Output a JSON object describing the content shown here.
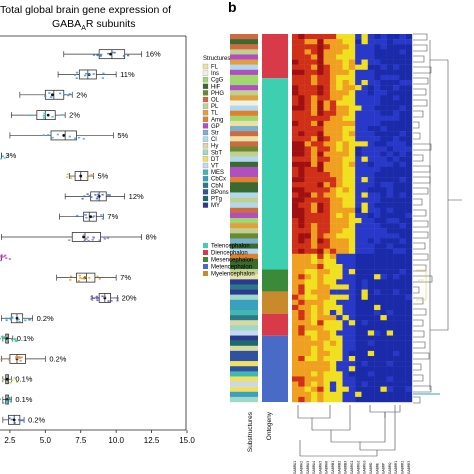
{
  "panel_b_label": "b",
  "chart_data": [
    {
      "type": "box",
      "title": "Total global brain gene expression of GABAₐR subunits",
      "title_line1": "Total global brain gene expression of",
      "title_line2": "GABA",
      "title_sub": "A",
      "title_line2_end": "R subunits",
      "x_ticks": [
        "2.5",
        "5.0",
        "7.5",
        "10.0",
        "12.5",
        "15.0"
      ],
      "xlim": [
        1.8,
        15.0
      ],
      "grid": false,
      "rows": [
        {
          "pct": "16%",
          "q1": 8.8,
          "med": 9.7,
          "q3": 10.6,
          "lo": 6.3,
          "hi": 11.8,
          "mean": 9.6,
          "dot_color": "#3a6fb5"
        },
        {
          "pct": "11%",
          "q1": 7.4,
          "med": 8.0,
          "q3": 8.6,
          "lo": 5.9,
          "hi": 10.0,
          "mean": 8.1,
          "dot_color": "#3a9ad0"
        },
        {
          "pct": "2%",
          "q1": 5.0,
          "med": 5.6,
          "q3": 6.3,
          "lo": 3.2,
          "hi": 6.9,
          "mean": 5.5,
          "dot_color": "#3a8fd0"
        },
        {
          "pct": "2%",
          "q1": 4.4,
          "med": 5.0,
          "q3": 5.7,
          "lo": 2.6,
          "hi": 6.4,
          "mean": 5.2,
          "dot_color": "#3cbcd6"
        },
        {
          "pct": "5%",
          "q1": 5.4,
          "med": 6.4,
          "q3": 7.2,
          "lo": 2.5,
          "hi": 9.8,
          "mean": 6.3,
          "dot_color": "#4aa3df"
        },
        {
          "pct": "3%",
          "q1": 1.9,
          "med": 1.9,
          "q3": 1.9,
          "lo": 1.9,
          "hi": 1.9,
          "mean": 1.9,
          "dot_color": "#5bc7c8"
        },
        {
          "pct": "5%",
          "q1": 7.1,
          "med": 7.5,
          "q3": 8.0,
          "lo": 6.7,
          "hi": 8.4,
          "mean": 7.5,
          "dot_color": "#e0b040"
        },
        {
          "pct": "12%",
          "q1": 8.2,
          "med": 8.8,
          "q3": 9.3,
          "lo": 6.4,
          "hi": 10.6,
          "mean": 8.8,
          "dot_color": "#4060c0"
        },
        {
          "pct": "7%",
          "q1": 7.7,
          "med": 8.1,
          "q3": 8.6,
          "lo": 6.0,
          "hi": 9.1,
          "mean": 8.2,
          "dot_color": "#5a8fd8"
        },
        {
          "pct": "8%",
          "q1": 6.9,
          "med": 7.8,
          "q3": 8.9,
          "lo": 1.9,
          "hi": 11.8,
          "mean": 7.7,
          "dot_color": "#8a7ac0"
        },
        {
          "pct": "",
          "q1": 1.9,
          "med": 1.9,
          "q3": 1.9,
          "lo": 1.9,
          "hi": 1.9,
          "mean": 1.9,
          "dot_color": "#c054b0"
        },
        {
          "pct": "7%",
          "q1": 7.2,
          "med": 7.9,
          "q3": 8.5,
          "lo": 5.8,
          "hi": 10.0,
          "mean": 7.8,
          "dot_color": "#d8a020"
        },
        {
          "pct": "20%",
          "q1": 8.8,
          "med": 9.2,
          "q3": 9.6,
          "lo": 8.3,
          "hi": 10.1,
          "mean": 9.2,
          "dot_color": "#6a50c0"
        },
        {
          "pct": "0.2%",
          "q1": 2.6,
          "med": 3.0,
          "q3": 3.4,
          "lo": 1.9,
          "hi": 4.1,
          "mean": 3.0,
          "dot_color": "#3a9ad0"
        },
        {
          "pct": "0.1%",
          "q1": 2.2,
          "med": 2.3,
          "q3": 2.4,
          "lo": 2.0,
          "hi": 2.7,
          "mean": 2.3,
          "dot_color": "#3ec090"
        },
        {
          "pct": "0.2%",
          "q1": 2.5,
          "med": 3.0,
          "q3": 3.6,
          "lo": 1.9,
          "hi": 5.0,
          "mean": 3.0,
          "dot_color": "#e08040"
        },
        {
          "pct": "0.1%",
          "q1": 2.2,
          "med": 2.3,
          "q3": 2.4,
          "lo": 2.0,
          "hi": 2.6,
          "mean": 2.3,
          "dot_color": "#c8d040"
        },
        {
          "pct": "0.1%",
          "q1": 2.2,
          "med": 2.3,
          "q3": 2.4,
          "lo": 2.0,
          "hi": 2.6,
          "mean": 2.3,
          "dot_color": "#3aa0a0"
        },
        {
          "pct": "0.2%",
          "q1": 2.4,
          "med": 2.8,
          "q3": 3.2,
          "lo": 2.0,
          "hi": 3.5,
          "mean": 2.8,
          "dot_color": "#3a6fb5"
        }
      ]
    },
    {
      "type": "heatmap",
      "legend_title": "Structures",
      "structures": [
        {
          "name": "FL",
          "color": "#e8e2a8"
        },
        {
          "name": "Ins",
          "color": "#f4f0e0"
        },
        {
          "name": "CgG",
          "color": "#a0d870"
        },
        {
          "name": "HiF",
          "color": "#3a6a30"
        },
        {
          "name": "PHG",
          "color": "#6a8a30"
        },
        {
          "name": "OL",
          "color": "#d06a40"
        },
        {
          "name": "PL",
          "color": "#c0d090"
        },
        {
          "name": "TL",
          "color": "#e0a040"
        },
        {
          "name": "Amg",
          "color": "#e08030"
        },
        {
          "name": "GP",
          "color": "#b050c0"
        },
        {
          "name": "Str",
          "color": "#7ab0d0"
        },
        {
          "name": "Cl",
          "color": "#b0d8f0"
        },
        {
          "name": "Hy",
          "color": "#d8d8a0"
        },
        {
          "name": "SbT",
          "color": "#a0d8c8"
        },
        {
          "name": "DT",
          "color": "#f0e060"
        },
        {
          "name": "VT",
          "color": "#c8d8f0"
        },
        {
          "name": "MES",
          "color": "#40b8b0"
        },
        {
          "name": "CbCx",
          "color": "#3aa0c0"
        },
        {
          "name": "CbN",
          "color": "#2a7a8a"
        },
        {
          "name": "BPons",
          "color": "#3050a0"
        },
        {
          "name": "PTg",
          "color": "#1a6a6a"
        },
        {
          "name": "MY",
          "color": "#2a3a90"
        }
      ],
      "ontogeny": [
        {
          "name": "Telencephalon",
          "color": "#3ecfb0"
        },
        {
          "name": "Diencephalon",
          "color": "#d93a4a"
        },
        {
          "name": "Mesencephalon",
          "color": "#3a8a3a"
        },
        {
          "name": "Metencephalon",
          "color": "#4a6ac8"
        },
        {
          "name": "Myelencephalon",
          "color": "#c88a2a"
        }
      ],
      "x_labels": [
        "Substructures",
        "Ontogeny"
      ],
      "columns": [
        "GABRA1",
        "GABRA2",
        "GABRA3",
        "GABRA4",
        "GABRA5",
        "GABRA6",
        "GABRB1",
        "GABRB2",
        "GABRB3",
        "GABRG1",
        "GABRG2",
        "GABRG3",
        "GABRD",
        "GABRE",
        "GABRP",
        "GABRQ",
        "GABRR1",
        "GABRR2",
        "GABRR3"
      ],
      "colors_low_to_high": [
        "#1a2aa8",
        "#2838c8",
        "#f0e020",
        "#f0a020",
        "#d03018",
        "#a01010"
      ],
      "rows_note": "approx. 170 brain structures"
    }
  ]
}
